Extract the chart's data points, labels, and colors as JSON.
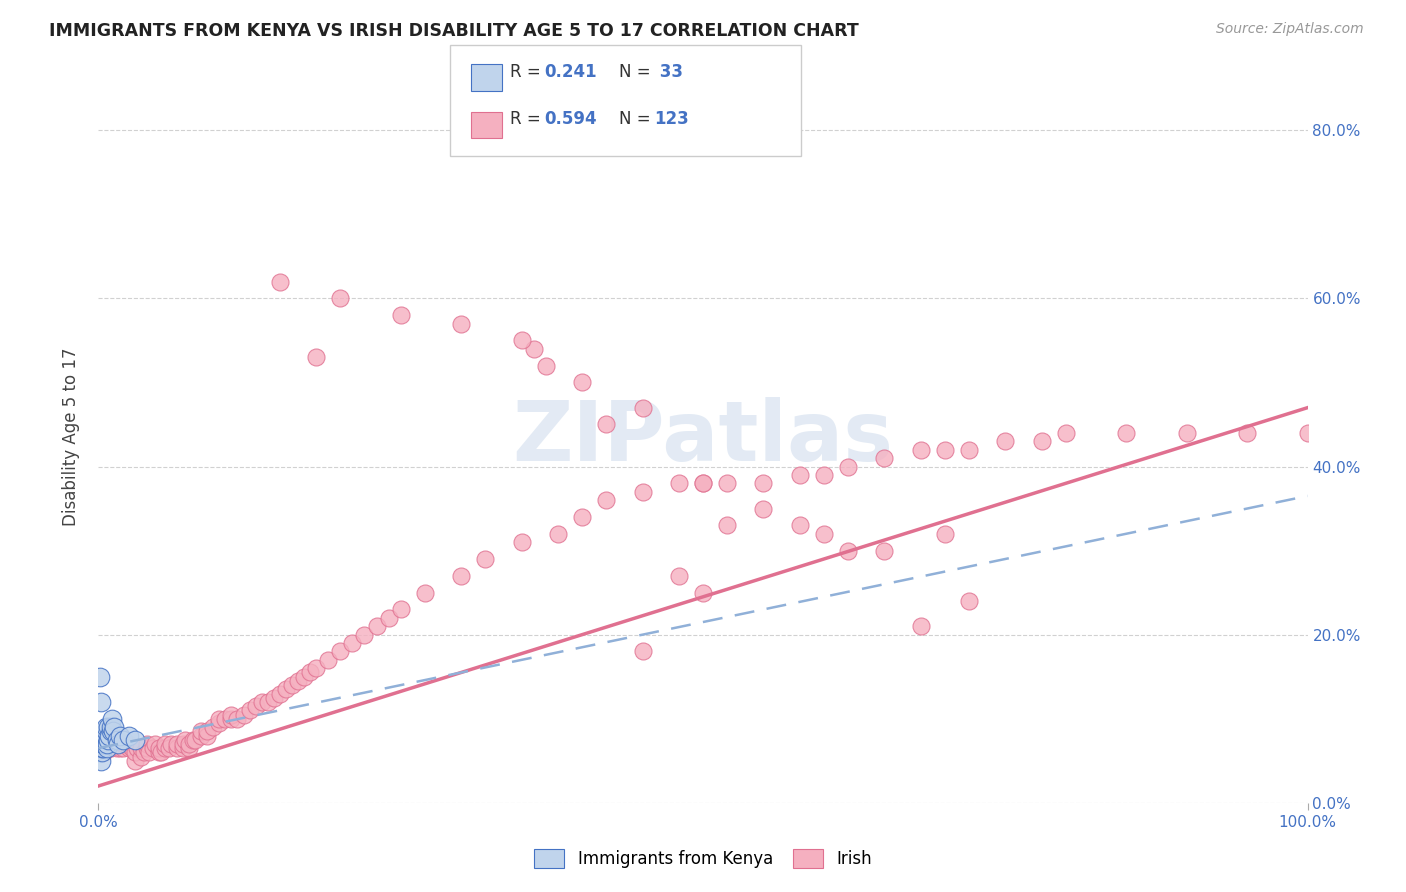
{
  "title": "IMMIGRANTS FROM KENYA VS IRISH DISABILITY AGE 5 TO 17 CORRELATION CHART",
  "source": "Source: ZipAtlas.com",
  "ylabel_label": "Disability Age 5 to 17",
  "xlim": [
    0.0,
    1.0
  ],
  "ylim": [
    0.0,
    0.87
  ],
  "watermark": "ZIPatlas",
  "r_kenya": "0.241",
  "n_kenya": " 33",
  "r_irish": "0.594",
  "n_irish": "123",
  "color_kenya_fill": "#c0d4ec",
  "color_kenya_edge": "#4472c4",
  "color_irish_fill": "#f5b0c0",
  "color_irish_edge": "#e07090",
  "color_kenya_line": "#4472c4",
  "color_irish_line": "#e07090",
  "color_kenya_dash": "#90b0d8",
  "color_r_n": "#4472c4",
  "background_color": "#ffffff",
  "grid_color": "#cccccc",
  "title_color": "#222222",
  "source_color": "#999999",
  "axis_label_color": "#444444",
  "tick_color": "#4472c4",
  "watermark_color": "#ccdaec",
  "y_ticks": [
    0.0,
    0.2,
    0.4,
    0.6,
    0.8
  ],
  "x_ticks": [
    0.0,
    1.0
  ],
  "x_tick_labels": [
    "0.0%",
    "100.0%"
  ],
  "y_tick_labels": [
    "0.0%",
    "20.0%",
    "40.0%",
    "60.0%",
    "80.0%"
  ],
  "kenya_x": [
    0.001,
    0.001,
    0.002,
    0.002,
    0.002,
    0.003,
    0.003,
    0.003,
    0.003,
    0.004,
    0.004,
    0.005,
    0.005,
    0.005,
    0.006,
    0.006,
    0.006,
    0.007,
    0.007,
    0.008,
    0.008,
    0.009,
    0.01,
    0.01,
    0.011,
    0.012,
    0.013,
    0.015,
    0.016,
    0.018,
    0.02,
    0.025,
    0.03
  ],
  "kenya_y": [
    0.06,
    0.15,
    0.12,
    0.07,
    0.05,
    0.06,
    0.065,
    0.07,
    0.075,
    0.065,
    0.07,
    0.07,
    0.075,
    0.08,
    0.08,
    0.085,
    0.09,
    0.065,
    0.07,
    0.075,
    0.09,
    0.08,
    0.085,
    0.09,
    0.1,
    0.085,
    0.09,
    0.075,
    0.07,
    0.08,
    0.075,
    0.08,
    0.075
  ],
  "irish_x": [
    0.005,
    0.008,
    0.01,
    0.01,
    0.012,
    0.013,
    0.015,
    0.015,
    0.018,
    0.02,
    0.02,
    0.022,
    0.025,
    0.025,
    0.028,
    0.03,
    0.03,
    0.032,
    0.035,
    0.035,
    0.038,
    0.04,
    0.04,
    0.042,
    0.045,
    0.047,
    0.05,
    0.05,
    0.052,
    0.055,
    0.055,
    0.058,
    0.06,
    0.065,
    0.065,
    0.07,
    0.07,
    0.072,
    0.075,
    0.075,
    0.078,
    0.08,
    0.085,
    0.085,
    0.09,
    0.09,
    0.095,
    0.1,
    0.1,
    0.105,
    0.11,
    0.11,
    0.115,
    0.12,
    0.125,
    0.13,
    0.135,
    0.14,
    0.145,
    0.15,
    0.155,
    0.16,
    0.165,
    0.17,
    0.175,
    0.18,
    0.19,
    0.2,
    0.21,
    0.22,
    0.23,
    0.24,
    0.25,
    0.27,
    0.3,
    0.32,
    0.35,
    0.38,
    0.4,
    0.42,
    0.45,
    0.48,
    0.5,
    0.52,
    0.55,
    0.58,
    0.6,
    0.62,
    0.65,
    0.68,
    0.7,
    0.72,
    0.75,
    0.78,
    0.8,
    0.85,
    0.9,
    0.95,
    1.0,
    0.37,
    0.36,
    0.4,
    0.45,
    0.5,
    0.55,
    0.6,
    0.65,
    0.42,
    0.35,
    0.3,
    0.25,
    0.2,
    0.15,
    0.18,
    0.48,
    0.52,
    0.62,
    0.7,
    0.72,
    0.68,
    0.5,
    0.45,
    0.58
  ],
  "irish_y": [
    0.06,
    0.065,
    0.07,
    0.065,
    0.07,
    0.075,
    0.065,
    0.07,
    0.065,
    0.065,
    0.07,
    0.07,
    0.065,
    0.07,
    0.065,
    0.05,
    0.06,
    0.065,
    0.055,
    0.065,
    0.06,
    0.065,
    0.07,
    0.06,
    0.065,
    0.07,
    0.06,
    0.065,
    0.06,
    0.065,
    0.07,
    0.065,
    0.07,
    0.065,
    0.07,
    0.065,
    0.07,
    0.075,
    0.065,
    0.07,
    0.075,
    0.075,
    0.08,
    0.085,
    0.08,
    0.085,
    0.09,
    0.095,
    0.1,
    0.1,
    0.1,
    0.105,
    0.1,
    0.105,
    0.11,
    0.115,
    0.12,
    0.12,
    0.125,
    0.13,
    0.135,
    0.14,
    0.145,
    0.15,
    0.155,
    0.16,
    0.17,
    0.18,
    0.19,
    0.2,
    0.21,
    0.22,
    0.23,
    0.25,
    0.27,
    0.29,
    0.31,
    0.32,
    0.34,
    0.36,
    0.37,
    0.38,
    0.38,
    0.38,
    0.38,
    0.39,
    0.39,
    0.4,
    0.41,
    0.42,
    0.42,
    0.42,
    0.43,
    0.43,
    0.44,
    0.44,
    0.44,
    0.44,
    0.44,
    0.52,
    0.54,
    0.5,
    0.47,
    0.38,
    0.35,
    0.32,
    0.3,
    0.45,
    0.55,
    0.57,
    0.58,
    0.6,
    0.62,
    0.53,
    0.27,
    0.33,
    0.3,
    0.32,
    0.24,
    0.21,
    0.25,
    0.18,
    0.33
  ]
}
